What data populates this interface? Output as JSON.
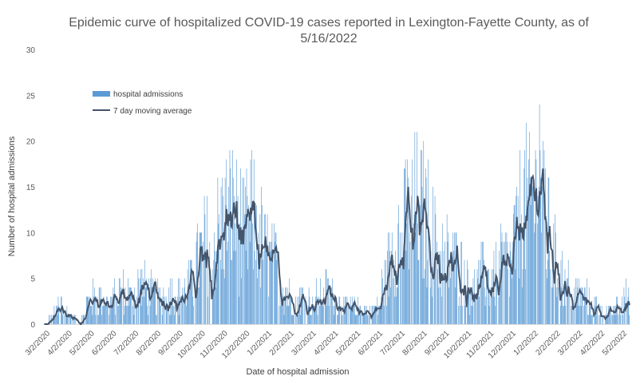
{
  "chart_data": {
    "type": "bar",
    "title_line1": "Epidemic curve of hospitalized COVID-19 cases reported in Lexington-Fayette County, as of",
    "title_line2": "5/16/2022",
    "xlabel": "Date of hospital admission",
    "ylabel": "Number of hospital admissions",
    "ylim": [
      0,
      30
    ],
    "yticks": [
      "0",
      "5",
      "10",
      "15",
      "20",
      "25",
      "30"
    ],
    "x_tick_labels": [
      "3/2/2020",
      "4/2/2020",
      "5/2/2020",
      "6/2/2020",
      "7/2/2020",
      "8/2/2020",
      "9/2/2020",
      "10/2/2020",
      "11/2/2020",
      "12/2/2020",
      "1/2/2021",
      "2/2/2021",
      "3/2/2021",
      "4/2/2021",
      "5/2/2021",
      "6/2/2021",
      "7/2/2021",
      "8/2/2021",
      "9/2/2021",
      "10/2/2021",
      "11/2/2021",
      "12/2/2021",
      "1/2/2022",
      "2/2/2022",
      "3/2/2022",
      "4/2/2022",
      "5/2/2022"
    ],
    "grid": false,
    "legend_position": "top-left",
    "series": [
      {
        "name": "hospital admissions",
        "kind": "bar",
        "color": "#5B9BD5",
        "weekly_values": [
          0.2,
          0.5,
          1.5,
          2,
          1.2,
          0.8,
          0.5,
          0.3,
          1,
          2.2,
          3,
          2.8,
          2.5,
          2.3,
          2.5,
          3.2,
          3.5,
          3.2,
          2.8,
          3.5,
          4.5,
          4,
          3.5,
          3,
          2.8,
          3,
          3.8,
          3.5,
          3.2,
          3.6,
          4,
          4.5,
          6.5,
          7.5,
          8.5,
          8,
          8.8,
          10,
          11.5,
          12.5,
          12.2,
          11,
          9.5,
          10.5,
          11.5,
          11,
          9.5,
          7.5,
          6.5,
          6.5,
          5,
          3.5,
          3,
          2.5,
          2.8,
          3,
          2.5,
          2.2,
          2.8,
          3,
          3.5,
          3.2,
          2.5,
          2.2,
          2,
          1.8,
          1.6,
          1.5,
          1.3,
          1.2,
          1.6,
          2,
          4.5,
          6.5,
          8.5,
          9.5,
          10.5,
          11.5,
          12.5,
          12.8,
          12,
          11,
          9.5,
          8.5,
          8,
          7.5,
          7,
          6.5,
          6,
          5.5,
          4.5,
          4,
          4.5,
          5.5,
          5,
          5,
          5.5,
          6.5,
          7,
          6.5,
          9,
          12,
          13,
          12.5,
          13.5,
          20,
          14,
          9.5,
          7.5,
          6,
          5,
          4.5,
          4,
          3.5,
          3,
          2.8,
          2.5,
          2,
          1.5,
          1.2,
          1.2,
          1.5,
          2,
          2.8,
          2.8
        ]
      },
      {
        "name": "7 day moving average",
        "kind": "line",
        "color": "#44546A"
      }
    ]
  }
}
